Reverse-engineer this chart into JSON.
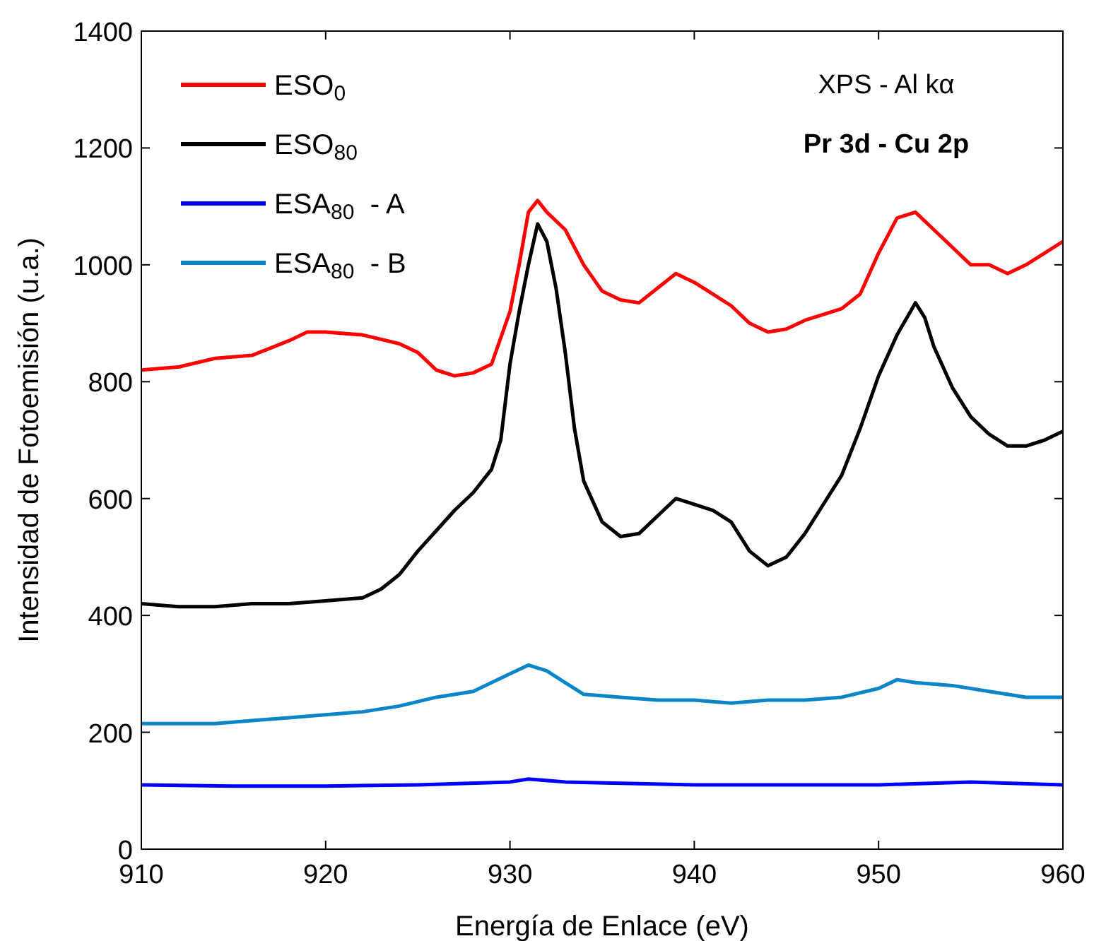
{
  "chart_data": {
    "type": "line",
    "xlabel": "Energía de Enlace (eV)",
    "ylabel": "Intensidad de Fotoemisión (u.a.)",
    "annotations": [
      "XPS - Al kα",
      "Pr 3d  - Cu 2p"
    ],
    "xlim": [
      910,
      960
    ],
    "xticks": [
      910,
      920,
      930,
      940,
      950,
      960
    ],
    "ylim": [
      0,
      1400
    ],
    "yticks": [
      0,
      200,
      400,
      600,
      800,
      1000,
      1200,
      1400
    ],
    "grid": false,
    "legend": "top left",
    "line_style": "solid",
    "marker": "none",
    "series": [
      {
        "name": "ESO$_{0}$",
        "color": "#ff0000",
        "x": [
          910,
          912,
          914,
          916,
          918,
          919,
          920,
          922,
          924,
          925,
          926,
          927,
          928,
          929,
          930,
          930.5,
          931,
          931.5,
          932,
          933,
          934,
          935,
          936,
          937,
          938,
          939,
          940,
          941,
          942,
          943,
          944,
          945,
          946,
          947,
          948,
          949,
          950,
          951,
          952,
          953,
          954,
          955,
          956,
          957,
          958,
          959,
          960
        ],
        "values": [
          820,
          825,
          840,
          845,
          870,
          885,
          885,
          880,
          865,
          850,
          820,
          810,
          815,
          830,
          920,
          1000,
          1090,
          1110,
          1090,
          1060,
          1000,
          955,
          940,
          935,
          960,
          985,
          970,
          950,
          930,
          900,
          885,
          890,
          905,
          915,
          925,
          950,
          1020,
          1080,
          1090,
          1060,
          1030,
          1000,
          1000,
          985,
          1000,
          1020,
          1040
        ]
      },
      {
        "name": "ESO$_{80}$",
        "color": "#000000",
        "x": [
          910,
          912,
          914,
          916,
          918,
          920,
          922,
          923,
          924,
          925,
          926,
          927,
          928,
          929,
          929.5,
          930,
          930.5,
          931,
          931.5,
          932,
          932.5,
          933,
          933.5,
          934,
          935,
          936,
          937,
          938,
          939,
          940,
          941,
          942,
          943,
          944,
          945,
          946,
          947,
          948,
          949,
          950,
          951,
          952,
          952.5,
          953,
          954,
          955,
          956,
          957,
          958,
          959,
          960
        ],
        "values": [
          420,
          415,
          415,
          420,
          420,
          425,
          430,
          445,
          470,
          510,
          545,
          580,
          610,
          650,
          700,
          830,
          920,
          1000,
          1070,
          1040,
          960,
          850,
          720,
          630,
          560,
          535,
          540,
          570,
          600,
          590,
          580,
          560,
          510,
          485,
          500,
          540,
          590,
          640,
          720,
          810,
          880,
          935,
          910,
          860,
          790,
          740,
          710,
          690,
          690,
          700,
          715
        ]
      },
      {
        "name": "ESA$_{80}$  - A",
        "color": "#0000ff",
        "x": [
          910,
          915,
          920,
          925,
          930,
          931,
          933,
          940,
          950,
          955,
          960
        ],
        "values": [
          110,
          108,
          108,
          110,
          115,
          120,
          115,
          110,
          110,
          115,
          110
        ]
      },
      {
        "name": "ESA$_{80}$  - B",
        "color": "#0a85c9",
        "x": [
          910,
          912,
          914,
          916,
          918,
          920,
          922,
          924,
          926,
          928,
          929,
          930,
          931,
          932,
          933,
          934,
          936,
          938,
          940,
          942,
          944,
          946,
          948,
          950,
          951,
          952,
          954,
          956,
          958,
          960
        ],
        "values": [
          215,
          215,
          215,
          220,
          225,
          230,
          235,
          245,
          260,
          270,
          285,
          300,
          315,
          305,
          285,
          265,
          260,
          255,
          255,
          250,
          255,
          255,
          260,
          275,
          290,
          285,
          280,
          270,
          260,
          260
        ]
      }
    ]
  }
}
